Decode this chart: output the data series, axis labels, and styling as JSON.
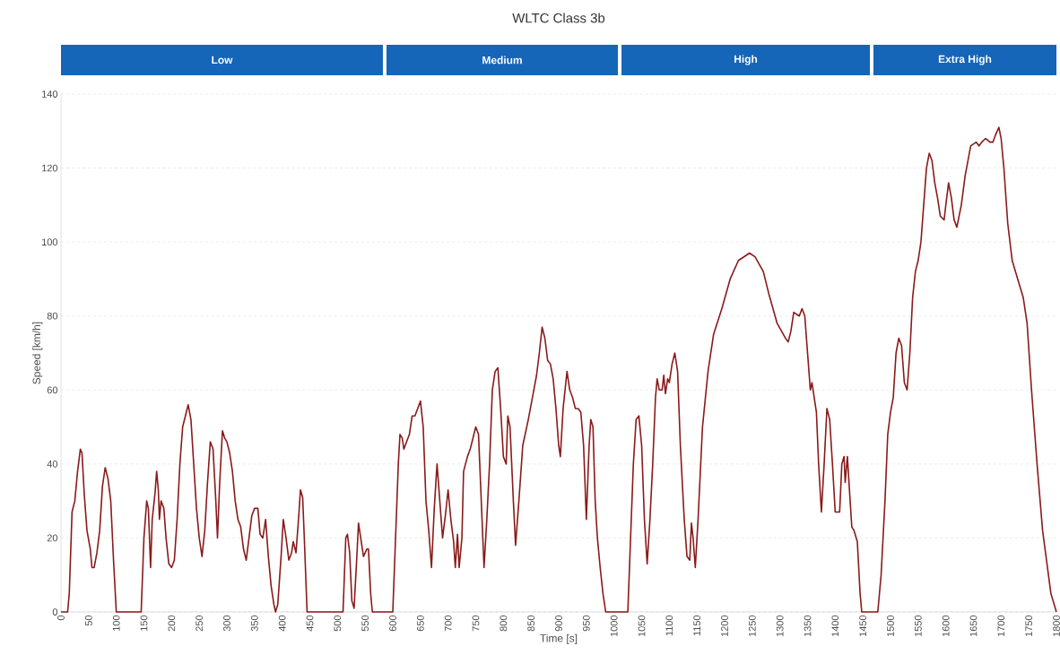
{
  "chart_data": {
    "type": "line",
    "title": "WLTC Class 3b",
    "xlabel": "Time [s]",
    "ylabel": "Speed [km/h]",
    "x": [
      0,
      12,
      15,
      20,
      25,
      30,
      35,
      38,
      42,
      47,
      53,
      56,
      60,
      65,
      70,
      75,
      80,
      85,
      90,
      95,
      100,
      145,
      150,
      155,
      158,
      162,
      165,
      170,
      173,
      176,
      178,
      181,
      186,
      190,
      195,
      200,
      205,
      210,
      215,
      220,
      225,
      230,
      235,
      240,
      245,
      250,
      255,
      260,
      265,
      270,
      275,
      280,
      283,
      287,
      292,
      296,
      300,
      305,
      310,
      315,
      320,
      325,
      330,
      335,
      340,
      345,
      350,
      356,
      360,
      365,
      370,
      375,
      380,
      385,
      388,
      392,
      398,
      402,
      407,
      412,
      417,
      420,
      425,
      430,
      433,
      437,
      440,
      445,
      510,
      515,
      518,
      522,
      526,
      530,
      535,
      538,
      542,
      547,
      553,
      556,
      560,
      563,
      600,
      605,
      610,
      613,
      617,
      620,
      625,
      630,
      635,
      640,
      645,
      650,
      655,
      660,
      665,
      670,
      675,
      680,
      685,
      690,
      695,
      700,
      705,
      710,
      713,
      717,
      720,
      725,
      728,
      735,
      740,
      745,
      750,
      755,
      760,
      765,
      770,
      775,
      780,
      785,
      790,
      795,
      800,
      805,
      808,
      812,
      818,
      822,
      828,
      835,
      845,
      855,
      860,
      865,
      870,
      875,
      880,
      885,
      890,
      895,
      900,
      903,
      908,
      915,
      920,
      925,
      930,
      935,
      940,
      945,
      950,
      955,
      958,
      962,
      966,
      970,
      975,
      980,
      985,
      1025,
      1030,
      1035,
      1040,
      1045,
      1050,
      1055,
      1060,
      1065,
      1070,
      1075,
      1078,
      1082,
      1087,
      1090,
      1093,
      1097,
      1100,
      1105,
      1110,
      1115,
      1120,
      1127,
      1132,
      1137,
      1140,
      1143,
      1147,
      1152,
      1160,
      1170,
      1180,
      1195,
      1210,
      1225,
      1245,
      1255,
      1270,
      1280,
      1295,
      1310,
      1315,
      1320,
      1325,
      1335,
      1340,
      1345,
      1350,
      1355,
      1358,
      1362,
      1366,
      1370,
      1375,
      1380,
      1385,
      1390,
      1395,
      1400,
      1408,
      1412,
      1416,
      1418,
      1422,
      1427,
      1430,
      1434,
      1440,
      1445,
      1448,
      1477,
      1483,
      1490,
      1495,
      1500,
      1505,
      1510,
      1515,
      1520,
      1525,
      1530,
      1535,
      1540,
      1545,
      1550,
      1555,
      1560,
      1565,
      1570,
      1575,
      1580,
      1585,
      1590,
      1597,
      1600,
      1605,
      1610,
      1615,
      1620,
      1628,
      1635,
      1645,
      1655,
      1660,
      1665,
      1672,
      1680,
      1685,
      1690,
      1696,
      1700,
      1705,
      1712,
      1720,
      1730,
      1740,
      1747,
      1755,
      1765,
      1775,
      1790,
      1800
    ],
    "series": [
      {
        "color": "#8b1a1a",
        "values": [
          0,
          0,
          5,
          27,
          30,
          38,
          44,
          43,
          32,
          22,
          17,
          12,
          12,
          16,
          22,
          34,
          39,
          36,
          30,
          14,
          0,
          0,
          20,
          30,
          28,
          12,
          25,
          32,
          38,
          33,
          25,
          30,
          28,
          20,
          13,
          12,
          14,
          25,
          40,
          50,
          53,
          56,
          52,
          40,
          28,
          20,
          15,
          22,
          35,
          46,
          44,
          30,
          20,
          35,
          49,
          47,
          46,
          43,
          38,
          30,
          25,
          23,
          17,
          14,
          20,
          26,
          28,
          28,
          21,
          20,
          25,
          15,
          7,
          2,
          0,
          2,
          15,
          25,
          20,
          14,
          16,
          19,
          16,
          26,
          33,
          31,
          20,
          0,
          0,
          20,
          21,
          16,
          3,
          1,
          15,
          24,
          20,
          15,
          17,
          17,
          5,
          0,
          0,
          20,
          40,
          48,
          47,
          44,
          46,
          48,
          53,
          53,
          55,
          57,
          50,
          30,
          22,
          12,
          28,
          40,
          30,
          20,
          26,
          33,
          25,
          19,
          12,
          21,
          12,
          20,
          38,
          42,
          44,
          47,
          50,
          48,
          30,
          12,
          25,
          40,
          60,
          65,
          66,
          55,
          42,
          40,
          53,
          50,
          30,
          18,
          30,
          45,
          52,
          60,
          64,
          70,
          77,
          74,
          68,
          67,
          63,
          55,
          45,
          42,
          55,
          65,
          60,
          58,
          55,
          55,
          54,
          45,
          25,
          45,
          52,
          50,
          30,
          20,
          12,
          5,
          0,
          0,
          20,
          40,
          52,
          53,
          45,
          25,
          13,
          25,
          40,
          58,
          63,
          60,
          60,
          64,
          59,
          63,
          62,
          67,
          70,
          65,
          45,
          25,
          15,
          14,
          24,
          20,
          12,
          25,
          50,
          65,
          75,
          82,
          90,
          95,
          97,
          96,
          92,
          86,
          78,
          74,
          73,
          76,
          81,
          80,
          82,
          80,
          70,
          60,
          62,
          58,
          54,
          40,
          27,
          40,
          55,
          52,
          40,
          27,
          27,
          40,
          42,
          35,
          42,
          30,
          23,
          22,
          19,
          5,
          0,
          0,
          10,
          30,
          48,
          54,
          58,
          70,
          74,
          72,
          62,
          60,
          70,
          85,
          92,
          95,
          100,
          110,
          120,
          124,
          122,
          116,
          112,
          107,
          106,
          110,
          116,
          112,
          106,
          104,
          110,
          118,
          126,
          127,
          126,
          127,
          128,
          127,
          127,
          129,
          131,
          128,
          120,
          105,
          95,
          90,
          85,
          78,
          60,
          40,
          22,
          5,
          0
        ]
      }
    ],
    "xlim": [
      0,
      1800
    ],
    "ylim": [
      0,
      140
    ],
    "xticks": [
      0,
      50,
      100,
      150,
      200,
      250,
      300,
      350,
      400,
      450,
      500,
      550,
      600,
      650,
      700,
      750,
      800,
      850,
      900,
      950,
      1000,
      1050,
      1100,
      1150,
      1200,
      1250,
      1300,
      1350,
      1400,
      1450,
      1500,
      1550,
      1600,
      1650,
      1700,
      1750,
      1800
    ],
    "yticks": [
      0,
      20,
      40,
      60,
      80,
      100,
      120,
      140
    ],
    "grid": "y",
    "annotations": [
      "Low",
      "Medium",
      "High",
      "Extra High"
    ]
  }
}
